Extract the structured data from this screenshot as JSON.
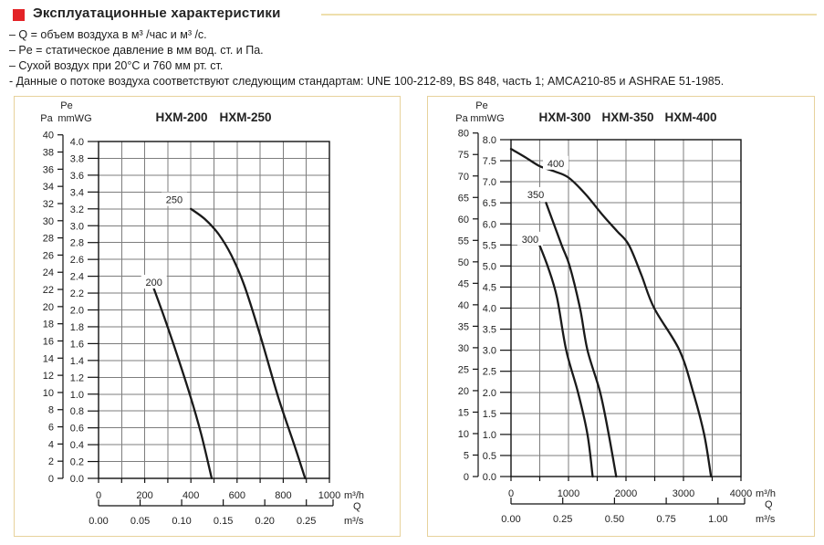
{
  "header": {
    "title": "Эксплуатационные характеристики",
    "bullets": [
      "– Q = объем воздуха в м³ /час и м³ /с.",
      "– Pe = статическое давление в мм вод. ст. и Па.",
      "– Сухой воздух при 20°C и 760 мм рт. ст.",
      "- Данные о потоке воздуха соответствуют следующим стандартам: UNE 100-212-89, BS 848, часть 1; AMCA210-85 и ASHRAE 51-1985."
    ]
  },
  "colors": {
    "accent_red": "#e32327",
    "rule_tan": "#eedfac",
    "panel_border": "#e7d29c",
    "grid": "#7d7d7d",
    "curve": "#1a1a1a",
    "text": "#222222"
  },
  "chart_data": [
    {
      "type": "line",
      "title": "HXM-200 HXM-250",
      "models": [
        "HXM-200",
        "HXM-250"
      ],
      "y_axis_pa": {
        "name": "Pa",
        "max": 40,
        "step": 2
      },
      "y_axis_mmwg": {
        "name_top": "Pe",
        "name": "mmWG",
        "max": 4.0,
        "step": 0.2
      },
      "x_axis": {
        "name": "Q",
        "unit_h": "m³/h",
        "unit_s": "m³/s",
        "max_m3h": 1000,
        "label_step": 200,
        "grid_step": 100,
        "ms_ticks": [
          0,
          0.05,
          0.1,
          0.15,
          0.2,
          0.25
        ]
      },
      "series": [
        {
          "name": "200",
          "label_at": [
            240,
            2.33
          ],
          "points_m3h_mmwg": [
            [
              240,
              2.25
            ],
            [
              280,
              1.95
            ],
            [
              330,
              1.55
            ],
            [
              395,
              1.0
            ],
            [
              445,
              0.52
            ],
            [
              490,
              0
            ]
          ]
        },
        {
          "name": "250",
          "label_at": [
            328,
            3.31
          ],
          "points_m3h_mmwg": [
            [
              400,
              3.2
            ],
            [
              460,
              3.08
            ],
            [
              520,
              2.9
            ],
            [
              575,
              2.65
            ],
            [
              630,
              2.3
            ],
            [
              700,
              1.7
            ],
            [
              780,
              0.95
            ],
            [
              850,
              0.38
            ],
            [
              895,
              0
            ]
          ]
        }
      ]
    },
    {
      "type": "line",
      "title": "HXM-300 HXM-350 HXM-400",
      "models": [
        "HXM-300",
        "HXM-350",
        "HXM-400"
      ],
      "y_axis_pa": {
        "name": "Pa",
        "max": 80,
        "step": 5
      },
      "y_axis_mmwg": {
        "name_top": "Pe",
        "name": "mmWG",
        "max": 8.0,
        "step": 0.5
      },
      "x_axis": {
        "name": "Q",
        "unit_h": "m³/h",
        "unit_s": "m³/s",
        "max_m3h": 4000,
        "label_step": 1000,
        "grid_step": 500,
        "ms_ticks": [
          0,
          0.25,
          0.5,
          0.75,
          1.0
        ]
      },
      "series": [
        {
          "name": "300",
          "label_at": [
            333,
            5.64
          ],
          "points_m3h_mmwg": [
            [
              495,
              5.5
            ],
            [
              650,
              4.95
            ],
            [
              800,
              4.25
            ],
            [
              960,
              3.0
            ],
            [
              1165,
              2.0
            ],
            [
              1330,
              1.0
            ],
            [
              1420,
              0
            ]
          ]
        },
        {
          "name": "350",
          "label_at": [
            429,
            6.7
          ],
          "points_m3h_mmwg": [
            [
              610,
              6.5
            ],
            [
              880,
              5.5
            ],
            [
              1020,
              5.0
            ],
            [
              1200,
              4.0
            ],
            [
              1330,
              3.0
            ],
            [
              1550,
              2.0
            ],
            [
              1700,
              1.0
            ],
            [
              1830,
              0
            ]
          ]
        },
        {
          "name": "400",
          "label_at": [
            778,
            7.44
          ],
          "points_m3h_mmwg": [
            [
              0,
              7.78
            ],
            [
              250,
              7.58
            ],
            [
              500,
              7.37
            ],
            [
              750,
              7.25
            ],
            [
              1000,
              7.1
            ],
            [
              1300,
              6.7
            ],
            [
              1600,
              6.2
            ],
            [
              1850,
              5.82
            ],
            [
              2050,
              5.5
            ],
            [
              2270,
              4.78
            ],
            [
              2490,
              4.0
            ],
            [
              2930,
              3.0
            ],
            [
              3170,
              2.0
            ],
            [
              3360,
              1.0
            ],
            [
              3480,
              0
            ]
          ]
        }
      ]
    }
  ]
}
